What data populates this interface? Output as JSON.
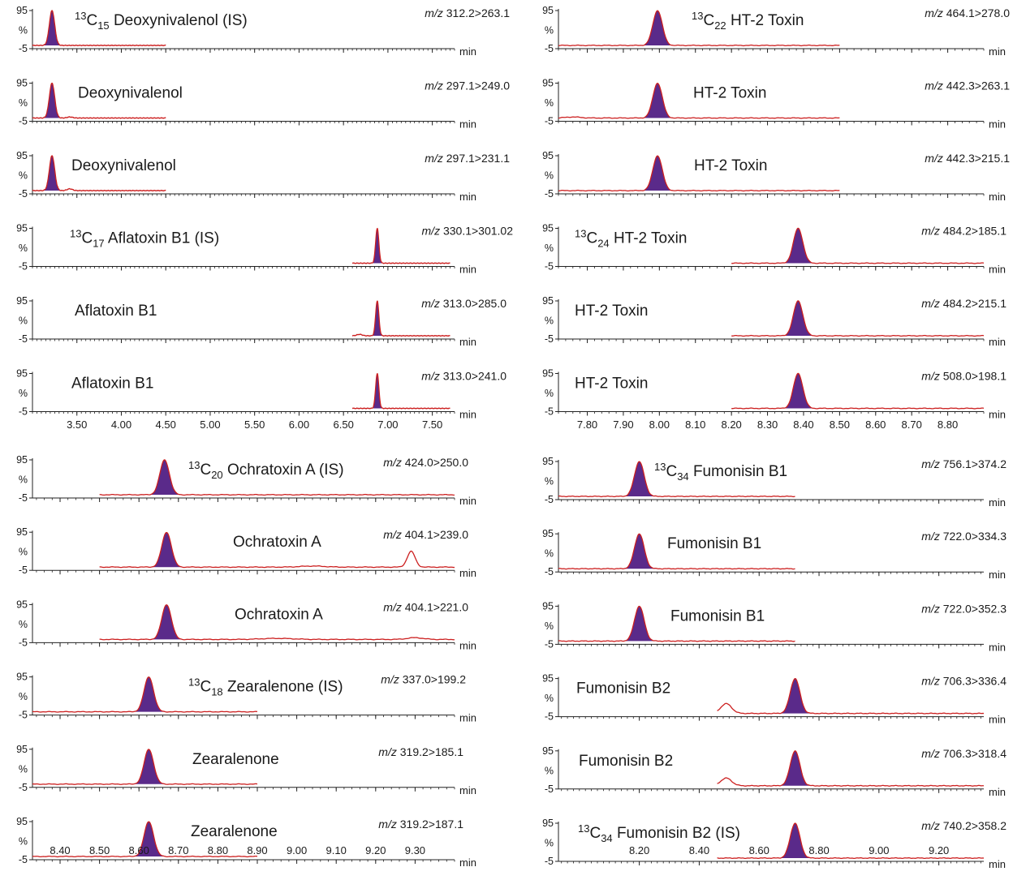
{
  "chart_data": {
    "type": "line",
    "y_ticks": [
      "95",
      "%",
      "-5"
    ],
    "x_unit": "min",
    "series_color": "#cc1f1f",
    "peak_fill": "#5a2a8a",
    "panels": [
      {
        "x_ticks": [
          3.5,
          4.0,
          4.5,
          5.0,
          5.5,
          6.0,
          6.5,
          7.0,
          7.5
        ],
        "x_tick_labels": [
          "3.50",
          "4.00",
          "4.50",
          "5.00",
          "5.50",
          "6.00",
          "6.50",
          "7.00",
          "7.50"
        ],
        "xlim": [
          3.0,
          7.75
        ],
        "traces": [
          {
            "sup": "13",
            "name": "C",
            "sub": "15",
            "rest": " Deoxynivalenol (IS)",
            "mz_prefix": "m/z",
            "mz": " 312.2>263.1",
            "peak": 3.22,
            "width": 0.03,
            "range": [
              3.0,
              4.5
            ],
            "extra": []
          },
          {
            "sup": "",
            "name": "Deoxynivalenol",
            "sub": "",
            "rest": "",
            "mz_prefix": "m/z",
            "mz": " 297.1>249.0",
            "peak": 3.22,
            "width": 0.03,
            "range": [
              3.0,
              4.5
            ],
            "extra": [
              [
                3.42,
                0.03,
                0.03
              ]
            ]
          },
          {
            "sup": "",
            "name": "Deoxynivalenol",
            "sub": "",
            "rest": "",
            "mz_prefix": "m/z",
            "mz": " 297.1>231.1",
            "peak": 3.22,
            "width": 0.03,
            "range": [
              3.0,
              4.5
            ],
            "extra": [
              [
                3.42,
                0.05,
                0.03
              ]
            ]
          },
          {
            "sup": "13",
            "name": "C",
            "sub": "17",
            "rest": " Aflatoxin B1 (IS)",
            "mz_prefix": "m/z",
            "mz": " 330.1>301.02",
            "peak": 6.88,
            "width": 0.018,
            "range": [
              6.6,
              7.7
            ],
            "extra": []
          },
          {
            "sup": "",
            "name": "Aflatoxin B1",
            "sub": "",
            "rest": "",
            "mz_prefix": "m/z",
            "mz": " 313.0>285.0",
            "peak": 6.88,
            "width": 0.018,
            "range": [
              6.6,
              7.7
            ],
            "extra": [
              [
                6.68,
                0.04,
                0.03
              ]
            ]
          },
          {
            "sup": "",
            "name": "Aflatoxin B1",
            "sub": "",
            "rest": "",
            "mz_prefix": "m/z",
            "mz": " 313.0>241.0",
            "peak": 6.88,
            "width": 0.018,
            "range": [
              6.6,
              7.7
            ],
            "extra": []
          }
        ]
      },
      {
        "x_ticks": [
          7.8,
          7.9,
          8.0,
          8.1,
          8.2,
          8.3,
          8.4,
          8.5,
          8.6,
          8.7,
          8.8
        ],
        "x_tick_labels": [
          "7.80",
          "7.90",
          "8.00",
          "8.10",
          "8.20",
          "8.30",
          "8.40",
          "8.50",
          "8.60",
          "8.70",
          "8.80"
        ],
        "xlim": [
          7.72,
          8.9
        ],
        "traces": [
          {
            "sup": "13",
            "name": "C",
            "sub": "22",
            "rest": " HT-2 Toxin",
            "mz_prefix": "m/z",
            "mz": " 464.1>278.0",
            "peak": 7.995,
            "width": 0.013,
            "range": [
              7.72,
              8.5
            ],
            "extra": []
          },
          {
            "sup": "",
            "name": "HT-2 Toxin",
            "sub": "",
            "rest": "",
            "mz_prefix": "m/z",
            "mz": " 442.3>263.1",
            "peak": 7.995,
            "width": 0.013,
            "range": [
              7.72,
              8.5
            ],
            "extra": [
              [
                7.76,
                0.03,
                0.02
              ]
            ]
          },
          {
            "sup": "",
            "name": "HT-2 Toxin",
            "sub": "",
            "rest": "",
            "mz_prefix": "m/z",
            "mz": " 442.3>215.1",
            "peak": 7.995,
            "width": 0.013,
            "range": [
              7.72,
              8.5
            ],
            "extra": []
          },
          {
            "sup": "13",
            "name": "C",
            "sub": "24",
            "rest": "  HT-2 Toxin",
            "mz_prefix": "m/z",
            "mz": " 484.2>185.1",
            "peak": 8.385,
            "width": 0.013,
            "range": [
              8.2,
              8.9
            ],
            "extra": []
          },
          {
            "sup": "",
            "name": "HT-2 Toxin",
            "sub": "",
            "rest": "",
            "mz_prefix": "m/z",
            "mz": " 484.2>215.1",
            "peak": 8.385,
            "width": 0.013,
            "range": [
              8.2,
              8.9
            ],
            "extra": []
          },
          {
            "sup": "",
            "name": "HT-2 Toxin",
            "sub": "",
            "rest": "",
            "mz_prefix": "m/z",
            "mz": " 508.0>198.1",
            "peak": 8.385,
            "width": 0.013,
            "range": [
              8.2,
              8.9
            ],
            "extra": []
          }
        ]
      },
      {
        "x_ticks": [
          8.4,
          8.5,
          8.6,
          8.7,
          8.8,
          8.9,
          9.0,
          9.1,
          9.2,
          9.3
        ],
        "x_tick_labels": [
          "8.40",
          "8.50",
          "8.60",
          "8.70",
          "8.80",
          "8.90",
          "9.00",
          "9.10",
          "9.20",
          "9.30"
        ],
        "xlim": [
          8.33,
          9.4
        ],
        "traces": [
          {
            "sup": "13",
            "name": "C",
            "sub": "20",
            "rest": " Ochratoxin A (IS)",
            "mz_prefix": "m/z",
            "mz": " 424.0>250.0",
            "peak": 8.665,
            "width": 0.012,
            "range": [
              8.5,
              9.4
            ],
            "extra": []
          },
          {
            "sup": "",
            "name": "Ochratoxin A",
            "sub": "",
            "rest": "",
            "mz_prefix": "m/z",
            "mz": " 404.1>239.0",
            "peak": 8.67,
            "width": 0.012,
            "range": [
              8.5,
              9.4
            ],
            "extra": [
              [
                9.29,
                0.45,
                0.01
              ],
              [
                9.04,
                0.03,
                0.03
              ]
            ]
          },
          {
            "sup": "",
            "name": "Ochratoxin A",
            "sub": "",
            "rest": "",
            "mz_prefix": "m/z",
            "mz": " 404.1>221.0",
            "peak": 8.67,
            "width": 0.012,
            "range": [
              8.5,
              9.4
            ],
            "extra": [
              [
                9.3,
                0.05,
                0.02
              ],
              [
                8.95,
                0.03,
                0.04
              ]
            ]
          },
          {
            "sup": "13",
            "name": "C",
            "sub": "18",
            "rest": " Zearalenone (IS)",
            "mz_prefix": "m/z",
            "mz": " 337.0>199.2",
            "peak": 8.625,
            "width": 0.012,
            "range": [
              8.33,
              8.9
            ],
            "extra": []
          },
          {
            "sup": "",
            "name": "Zearalenone",
            "sub": "",
            "rest": "",
            "mz_prefix": "m/z",
            "mz": " 319.2>185.1",
            "peak": 8.625,
            "width": 0.012,
            "range": [
              8.33,
              8.9
            ],
            "extra": []
          },
          {
            "sup": "",
            "name": "Zearalenone",
            "sub": "",
            "rest": "",
            "mz_prefix": "m/z",
            "mz": " 319.2>187.1",
            "peak": 8.625,
            "width": 0.012,
            "range": [
              8.33,
              8.9
            ],
            "extra": []
          }
        ]
      },
      {
        "x_ticks": [
          8.2,
          8.4,
          8.6,
          8.8,
          9.0,
          9.2
        ],
        "x_tick_labels": [
          "8.20",
          "8.40",
          "8.60",
          "8.80",
          "9.00",
          "9.20"
        ],
        "xlim": [
          7.93,
          9.35
        ],
        "traces": [
          {
            "sup": "13",
            "name": "C",
            "sub": "34",
            "rest": " Fumonisin B1",
            "mz_prefix": "m/z",
            "mz": " 756.1>374.2",
            "peak": 8.2,
            "width": 0.016,
            "range": [
              7.93,
              8.72
            ],
            "extra": []
          },
          {
            "sup": "",
            "name": "Fumonisin B1",
            "sub": "",
            "rest": "",
            "mz_prefix": "m/z",
            "mz": " 722.0>334.3",
            "peak": 8.2,
            "width": 0.016,
            "range": [
              7.93,
              8.72
            ],
            "extra": []
          },
          {
            "sup": "",
            "name": "Fumonisin B1",
            "sub": "",
            "rest": "",
            "mz_prefix": "m/z",
            "mz": " 722.0>352.3",
            "peak": 8.2,
            "width": 0.016,
            "range": [
              7.93,
              8.72
            ],
            "extra": []
          },
          {
            "sup": "",
            "name": "Fumonisin B2",
            "sub": "",
            "rest": "",
            "mz_prefix": "m/z",
            "mz": " 706.3>336.4",
            "peak": 8.72,
            "width": 0.016,
            "range": [
              8.46,
              9.35
            ],
            "extra": [
              [
                8.49,
                0.28,
                0.018
              ]
            ]
          },
          {
            "sup": "",
            "name": "Fumonisin B2",
            "sub": "",
            "rest": "",
            "mz_prefix": "m/z",
            "mz": " 706.3>318.4",
            "peak": 8.72,
            "width": 0.016,
            "range": [
              8.46,
              9.35
            ],
            "extra": [
              [
                8.49,
                0.22,
                0.018
              ]
            ]
          },
          {
            "sup": "13",
            "name": "C",
            "sub": "34",
            "rest": " Fumonisin B2 (IS)",
            "mz_prefix": "m/z",
            "mz": " 740.2>358.2",
            "peak": 8.72,
            "width": 0.016,
            "range": [
              8.46,
              9.35
            ],
            "extra": []
          }
        ]
      }
    ]
  }
}
